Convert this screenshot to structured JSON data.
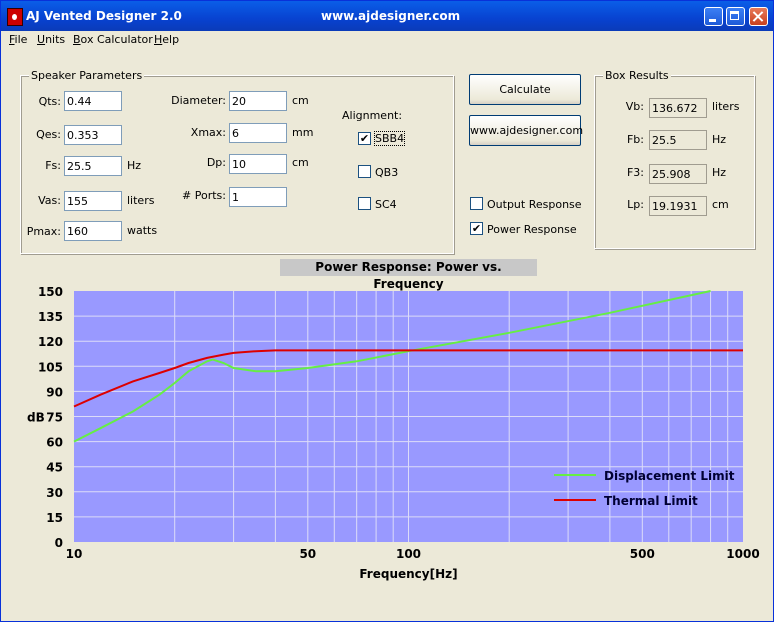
{
  "window": {
    "title": "AJ Vented Designer  2.0",
    "url": "www.ajdesigner.com"
  },
  "menu": [
    "File",
    "Units",
    "Box Calculator",
    "Help"
  ],
  "speaker": {
    "legend": "Speaker Parameters",
    "qts": {
      "label": "Qts:",
      "value": "0.44"
    },
    "qes": {
      "label": "Qes:",
      "value": "0.353"
    },
    "fs": {
      "label": "Fs:",
      "value": "25.5",
      "unit": "Hz"
    },
    "vas": {
      "label": "Vas:",
      "value": "155",
      "unit": "liters"
    },
    "pmax": {
      "label": "Pmax:",
      "value": "160",
      "unit": "watts"
    },
    "diameter": {
      "label": "Diameter:",
      "value": "20",
      "unit": "cm"
    },
    "xmax": {
      "label": "Xmax:",
      "value": "6",
      "unit": "mm"
    },
    "dp": {
      "label": "Dp:",
      "value": "10",
      "unit": "cm"
    },
    "ports": {
      "label": "# Ports:",
      "value": "1"
    },
    "alignment": {
      "label": "Alignment:",
      "options": [
        {
          "label": "SBB4",
          "checked": true
        },
        {
          "label": "QB3",
          "checked": false
        },
        {
          "label": "SC4",
          "checked": false
        }
      ]
    }
  },
  "actions": {
    "calculate": "Calculate",
    "website": "www.ajdesigner.com",
    "output_response": {
      "label": "Output Response",
      "checked": false
    },
    "power_response": {
      "label": "Power Response",
      "checked": true
    }
  },
  "results": {
    "legend": "Box Results",
    "vb": {
      "label": "Vb:",
      "value": "136.672",
      "unit": "liters"
    },
    "fb": {
      "label": "Fb:",
      "value": "25.5",
      "unit": "Hz"
    },
    "f3": {
      "label": "F3:",
      "value": "25.908",
      "unit": "Hz"
    },
    "lp": {
      "label": "Lp:",
      "value": "19.1931",
      "unit": "cm"
    }
  },
  "chart_data": {
    "type": "line",
    "title": "Power Response: Power vs. Frequency",
    "xlabel": "Frequency[Hz]",
    "ylabel": "dB",
    "xscale": "log",
    "xlim": [
      10,
      1000
    ],
    "ylim": [
      0,
      150
    ],
    "x_ticks": [
      10,
      50,
      100,
      500,
      1000
    ],
    "y_ticks": [
      0,
      15,
      30,
      45,
      60,
      75,
      90,
      105,
      120,
      135,
      150
    ],
    "grid": true,
    "plot_background": "#9999ff",
    "legend_position": "bottom-right",
    "series": [
      {
        "name": "Displacement Limit",
        "color": "#66ee44",
        "x": [
          10,
          12,
          15,
          18,
          20,
          22,
          25,
          26,
          28,
          30,
          35,
          40,
          50,
          70,
          100,
          200,
          400,
          800
        ],
        "y": [
          60,
          68,
          78,
          88,
          95,
          102,
          108,
          109,
          107,
          104,
          102,
          102,
          104,
          108,
          114,
          125,
          137,
          150
        ]
      },
      {
        "name": "Thermal Limit",
        "color": "#dd0000",
        "x": [
          10,
          12,
          15,
          18,
          20,
          22,
          25,
          28,
          30,
          35,
          40,
          50,
          100,
          1000
        ],
        "y": [
          81,
          88,
          96,
          101,
          104,
          107,
          110,
          112,
          113,
          114,
          114.5,
          114.5,
          114.5,
          114.5
        ]
      }
    ]
  }
}
